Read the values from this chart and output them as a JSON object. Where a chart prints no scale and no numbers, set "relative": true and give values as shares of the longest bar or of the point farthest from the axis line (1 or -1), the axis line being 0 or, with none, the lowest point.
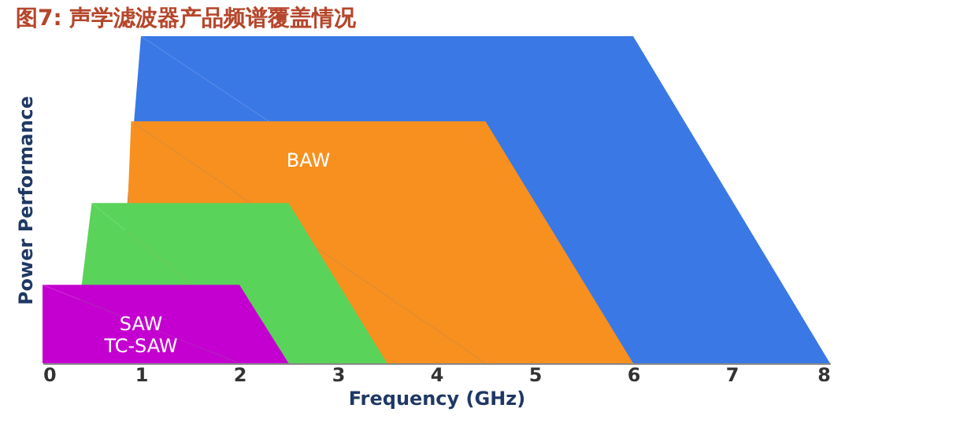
{
  "chart_data": {
    "type": "area",
    "title": "图7: 声学滤波器产品频谱覆盖情况",
    "xlabel": "Frequency (GHz)",
    "ylabel": "Power Performance",
    "relative": true,
    "xlim": [
      0,
      8
    ],
    "xticks": [
      0,
      1,
      2,
      3,
      4,
      5,
      6,
      7,
      8
    ],
    "grid": false,
    "series": [
      {
        "color": "#3a78e6",
        "x": [
          0.73,
          1,
          6,
          8
        ],
        "values": [
          0,
          1,
          1,
          0
        ]
      },
      {
        "name": "BAW",
        "color": "#f7901e",
        "x": [
          0.8,
          0.9,
          4.5,
          6
        ],
        "values": [
          0,
          0.74,
          0.74,
          0
        ]
      },
      {
        "color": "#5ad35a",
        "x": [
          0.3,
          0.5,
          2.5,
          3.5
        ],
        "values": [
          0,
          0.49,
          0.49,
          0
        ]
      },
      {
        "name": "SAW\nTC-SAW",
        "color": "#c400d0",
        "x": [
          0,
          0,
          2,
          2.5
        ],
        "values": [
          0,
          0.24,
          0.24,
          0
        ]
      }
    ]
  }
}
